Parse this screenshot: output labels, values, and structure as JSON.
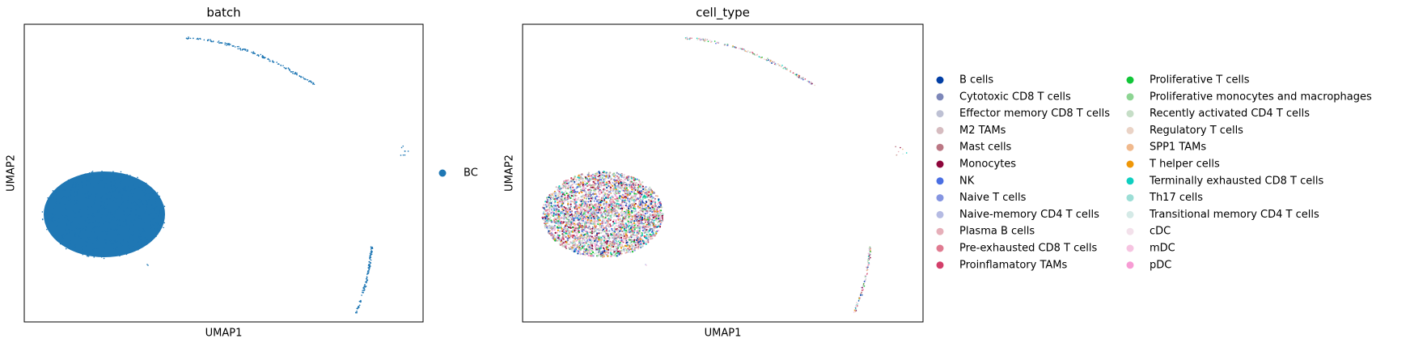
{
  "chart_data": [
    {
      "type": "scatter",
      "title": "batch",
      "xlabel": "UMAP1",
      "ylabel": "UMAP2",
      "legend": "right",
      "series": [
        {
          "name": "BC",
          "color": "#1f77b4"
        }
      ]
    },
    {
      "type": "scatter",
      "title": "cell_type",
      "xlabel": "UMAP1",
      "ylabel": "UMAP2",
      "legend": "right",
      "series": [
        {
          "name": "B cells",
          "color": "#023fa5"
        },
        {
          "name": "Cytotoxic CD8 T cells",
          "color": "#7d87b9"
        },
        {
          "name": "Effector memory CD8 T cells",
          "color": "#bec1d4"
        },
        {
          "name": "M2 TAMs",
          "color": "#d6bcc0"
        },
        {
          "name": "Mast cells",
          "color": "#bb7784"
        },
        {
          "name": "Monocytes",
          "color": "#8e063b"
        },
        {
          "name": "NK",
          "color": "#4a6fe3"
        },
        {
          "name": "Naive T cells",
          "color": "#8595e1"
        },
        {
          "name": "Naive-memory CD4 T cells",
          "color": "#b5bbe3"
        },
        {
          "name": "Plasma B cells",
          "color": "#e6afb9"
        },
        {
          "name": "Pre-exhausted CD8 T cells",
          "color": "#e07b91"
        },
        {
          "name": "Proinflamatory TAMs",
          "color": "#d33f6a"
        },
        {
          "name": "Proliferative T cells",
          "color": "#11c638"
        },
        {
          "name": "Proliferative monocytes and macrophages",
          "color": "#8dd593"
        },
        {
          "name": "Recently activated CD4 T cells",
          "color": "#c6dec7"
        },
        {
          "name": "Regulatory T cells",
          "color": "#ead3c6"
        },
        {
          "name": "SPP1 TAMs",
          "color": "#f0b98d"
        },
        {
          "name": "T helper cells",
          "color": "#ef9708"
        },
        {
          "name": "Terminally exhausted CD8 T cells",
          "color": "#0fcfc0"
        },
        {
          "name": "Th17 cells",
          "color": "#9cded6"
        },
        {
          "name": "Transitional memory CD4 T cells",
          "color": "#d5eae7"
        },
        {
          "name": "cDC",
          "color": "#f3e1eb"
        },
        {
          "name": "mDC",
          "color": "#f6c4e1"
        },
        {
          "name": "pDC",
          "color": "#f79cd4"
        }
      ]
    }
  ]
}
